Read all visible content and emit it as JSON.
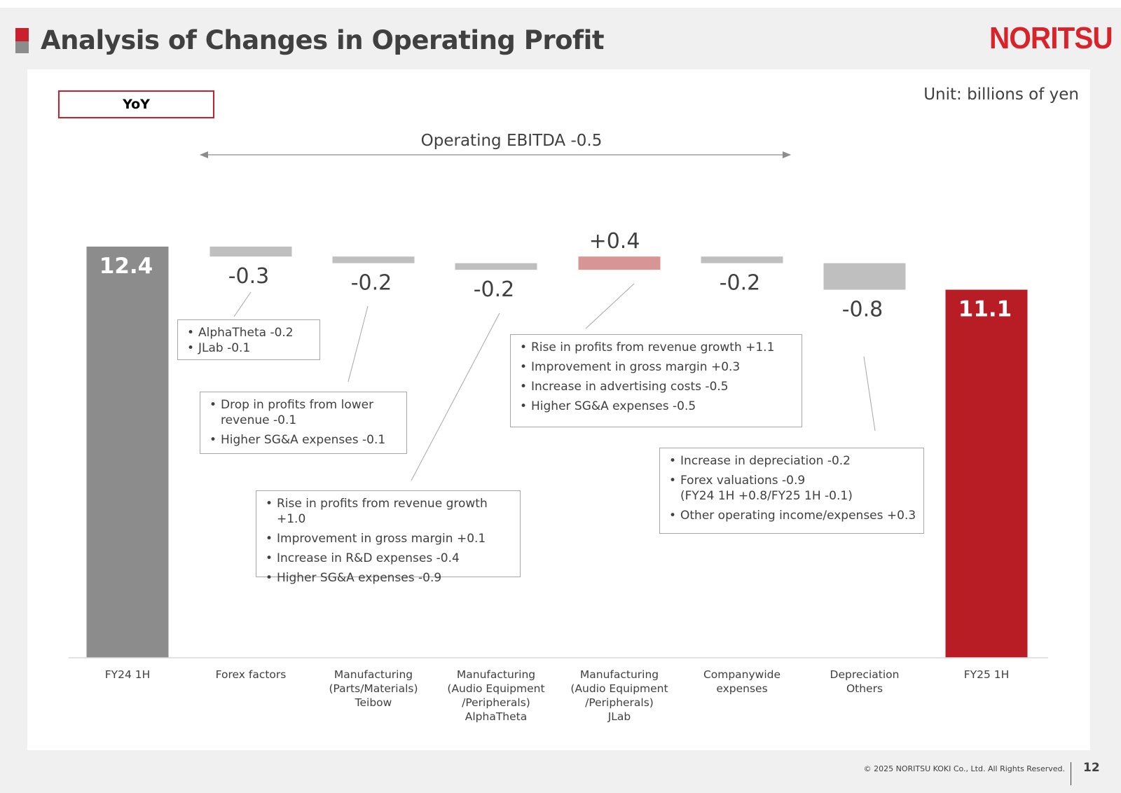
{
  "header": {
    "title": "Analysis of Changes in Operating Profit",
    "logo_text": "NORITSU"
  },
  "tag": "YoY",
  "unit": "Unit: billions of yen",
  "ebitda_label": "Operating EBITDA -0.5",
  "chart_data": {
    "type": "bar",
    "subtype": "waterfall",
    "categories": [
      "FY24 1H",
      "Forex factors",
      "Manufacturing\n(Parts/Materials)\nTeibow",
      "Manufacturing\n(Audio Equipment\n/Peripherals)\nAlphaTheta",
      "Manufacturing\n(Audio Equipment\n/Peripherals)\nJLab",
      "Companywide\nexpenses",
      "Depreciation\nOthers",
      "FY25 1H"
    ],
    "values": [
      12.4,
      -0.3,
      -0.2,
      -0.2,
      0.4,
      -0.2,
      -0.8,
      11.1
    ],
    "labels": [
      "12.4",
      "-0.3",
      "-0.2",
      "-0.2",
      "+0.4",
      "-0.2",
      "-0.8",
      "11.1"
    ],
    "kinds": [
      "total",
      "delta",
      "delta",
      "delta",
      "delta",
      "delta",
      "delta",
      "total"
    ],
    "colors": {
      "start_total": "#8c8c8c",
      "end_total": "#b81c24",
      "decrease": "#bfbfbf",
      "increase": "#d99594",
      "axis": "#d9d9d9",
      "connector": "#a6a6a6"
    },
    "grid": false,
    "legend": "none"
  },
  "notes": [
    {
      "items": [
        "AlphaTheta -0.2",
        "JLab -0.1"
      ]
    },
    {
      "items": [
        "Drop in profits from lower\nrevenue -0.1",
        "Higher SG&A expenses -0.1"
      ]
    },
    {
      "items": [
        "Rise in profits from revenue growth +1.0",
        "Improvement in gross margin +0.1",
        "Increase in R&D expenses -0.4",
        "Higher SG&A expenses -0.9"
      ]
    },
    {
      "items": [
        "Rise in profits from revenue growth +1.1",
        "Improvement in gross margin +0.3",
        "Increase in advertising costs -0.5",
        "Higher SG&A expenses -0.5"
      ]
    },
    {
      "items": [
        "Increase in depreciation -0.2",
        "Forex valuations -0.9\n(FY24 1H +0.8/FY25 1H -0.1)",
        "Other operating income/expenses +0.3"
      ]
    }
  ],
  "footer": {
    "copyright": "© 2025 NORITSU KOKI Co., Ltd. All Rights Reserved.",
    "page": "12"
  }
}
